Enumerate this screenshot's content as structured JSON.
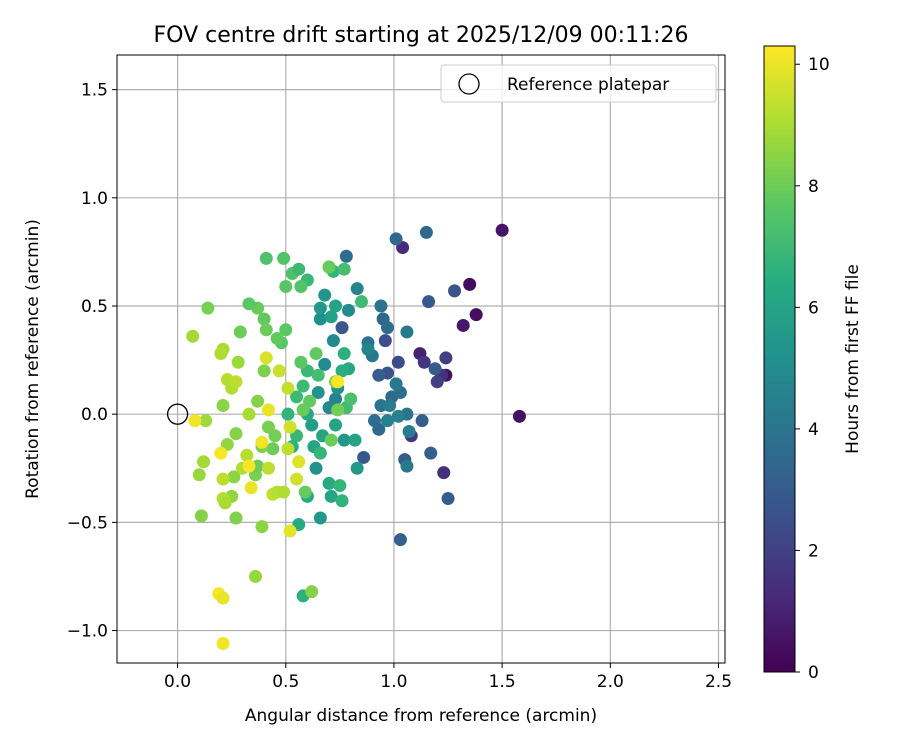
{
  "chart_data": {
    "type": "scatter",
    "title": "FOV centre drift starting at 2025/12/09 00:11:26",
    "xlabel": "Angular distance from reference (arcmin)",
    "ylabel": "Rotation from reference (arcmin)",
    "xlim": [
      -0.28,
      2.53
    ],
    "ylim": [
      -1.15,
      1.66
    ],
    "xticks": [
      0.0,
      0.5,
      1.0,
      1.5,
      2.0,
      2.5
    ],
    "xtick_labels": [
      "0.0",
      "0.5",
      "1.0",
      "1.5",
      "2.0",
      "2.5"
    ],
    "yticks": [
      -1.0,
      -0.5,
      0.0,
      0.5,
      1.0,
      1.5
    ],
    "ytick_labels": [
      "−1.0",
      "−0.5",
      "0.0",
      "0.5",
      "1.0",
      "1.5"
    ],
    "grid": true,
    "legend": {
      "position": "top-right",
      "entries": [
        "Reference platepar"
      ]
    },
    "reference_point": {
      "x": 0.0,
      "y": 0.0,
      "label": "Reference platepar"
    },
    "colorbar": {
      "label": "Hours from first FF file",
      "range": [
        0,
        10.3
      ],
      "ticks": [
        0,
        2,
        4,
        6,
        8,
        10
      ],
      "tick_labels": [
        "0",
        "2",
        "4",
        "6",
        "8",
        "10"
      ],
      "colormap": "viridis"
    },
    "points": [
      {
        "x": 1.5,
        "y": 0.85,
        "h": 0.6
      },
      {
        "x": 1.35,
        "y": 0.6,
        "h": 0.3
      },
      {
        "x": 1.38,
        "y": 0.46,
        "h": 0.4
      },
      {
        "x": 1.32,
        "y": 0.41,
        "h": 0.7
      },
      {
        "x": 1.58,
        "y": -0.01,
        "h": 0.5
      },
      {
        "x": 1.24,
        "y": 0.18,
        "h": 0.5
      },
      {
        "x": 1.12,
        "y": 0.28,
        "h": 1.0
      },
      {
        "x": 1.04,
        "y": 0.77,
        "h": 1.3
      },
      {
        "x": 1.23,
        "y": -0.27,
        "h": 1.4
      },
      {
        "x": 1.14,
        "y": 0.24,
        "h": 1.6
      },
      {
        "x": 1.22,
        "y": 0.18,
        "h": 1.5
      },
      {
        "x": 1.08,
        "y": -0.1,
        "h": 1.7
      },
      {
        "x": 1.24,
        "y": 0.26,
        "h": 1.9
      },
      {
        "x": 1.2,
        "y": 0.15,
        "h": 2.0
      },
      {
        "x": 1.28,
        "y": 0.57,
        "h": 2.6
      },
      {
        "x": 1.16,
        "y": 0.52,
        "h": 2.8
      },
      {
        "x": 1.25,
        "y": -0.39,
        "h": 3.0
      },
      {
        "x": 1.03,
        "y": -0.58,
        "h": 3.2
      },
      {
        "x": 1.19,
        "y": 0.21,
        "h": 3.0
      },
      {
        "x": 1.02,
        "y": 0.24,
        "h": 2.4
      },
      {
        "x": 0.96,
        "y": 0.34,
        "h": 2.5
      },
      {
        "x": 0.97,
        "y": 0.19,
        "h": 2.7
      },
      {
        "x": 0.93,
        "y": 0.18,
        "h": 3.1
      },
      {
        "x": 1.13,
        "y": -0.03,
        "h": 3.1
      },
      {
        "x": 1.17,
        "y": -0.18,
        "h": 3.2
      },
      {
        "x": 1.05,
        "y": -0.21,
        "h": 3.0
      },
      {
        "x": 0.86,
        "y": -0.2,
        "h": 2.8
      },
      {
        "x": 0.76,
        "y": 0.4,
        "h": 2.8
      },
      {
        "x": 1.01,
        "y": 0.81,
        "h": 3.4
      },
      {
        "x": 1.15,
        "y": 0.84,
        "h": 3.6
      },
      {
        "x": 0.78,
        "y": 0.73,
        "h": 3.7
      },
      {
        "x": 0.95,
        "y": 0.44,
        "h": 3.5
      },
      {
        "x": 0.94,
        "y": 0.5,
        "h": 3.9
      },
      {
        "x": 0.97,
        "y": 0.4,
        "h": 3.6
      },
      {
        "x": 0.88,
        "y": 0.33,
        "h": 4.0
      },
      {
        "x": 0.9,
        "y": 0.27,
        "h": 4.1
      },
      {
        "x": 0.99,
        "y": 0.08,
        "h": 3.6
      },
      {
        "x": 1.03,
        "y": 0.1,
        "h": 3.8
      },
      {
        "x": 1.01,
        "y": 0.14,
        "h": 4.2
      },
      {
        "x": 0.94,
        "y": 0.04,
        "h": 4.0
      },
      {
        "x": 0.98,
        "y": 0.04,
        "h": 4.3
      },
      {
        "x": 1.06,
        "y": 0.0,
        "h": 4.0
      },
      {
        "x": 0.91,
        "y": -0.03,
        "h": 3.7
      },
      {
        "x": 0.93,
        "y": -0.07,
        "h": 3.6
      },
      {
        "x": 1.02,
        "y": -0.01,
        "h": 4.5
      },
      {
        "x": 1.07,
        "y": -0.08,
        "h": 4.3
      },
      {
        "x": 1.06,
        "y": -0.24,
        "h": 4.2
      },
      {
        "x": 0.97,
        "y": -0.03,
        "h": 4.6
      },
      {
        "x": 0.88,
        "y": 0.3,
        "h": 4.6
      },
      {
        "x": 1.06,
        "y": 0.38,
        "h": 4.2
      },
      {
        "x": 0.83,
        "y": 0.58,
        "h": 4.7
      },
      {
        "x": 0.79,
        "y": 0.48,
        "h": 5.0
      },
      {
        "x": 0.73,
        "y": 0.07,
        "h": 4.6
      },
      {
        "x": 0.7,
        "y": 0.03,
        "h": 4.8
      },
      {
        "x": 0.68,
        "y": 0.23,
        "h": 4.9
      },
      {
        "x": 0.72,
        "y": 0.34,
        "h": 4.9
      },
      {
        "x": 0.66,
        "y": 0.44,
        "h": 5.1
      },
      {
        "x": 0.74,
        "y": 0.12,
        "h": 5.2
      },
      {
        "x": 0.65,
        "y": 0.1,
        "h": 5.3
      },
      {
        "x": 0.64,
        "y": -0.25,
        "h": 5.3
      },
      {
        "x": 0.66,
        "y": -0.48,
        "h": 5.5
      },
      {
        "x": 0.83,
        "y": -0.25,
        "h": 5.6
      },
      {
        "x": 0.77,
        "y": -0.12,
        "h": 5.5
      },
      {
        "x": 0.62,
        "y": -0.05,
        "h": 5.8
      },
      {
        "x": 0.66,
        "y": 0.49,
        "h": 5.6
      },
      {
        "x": 0.68,
        "y": 0.55,
        "h": 5.4
      },
      {
        "x": 0.71,
        "y": 0.45,
        "h": 5.9
      },
      {
        "x": 0.73,
        "y": 0.5,
        "h": 6.0
      },
      {
        "x": 0.67,
        "y": -0.1,
        "h": 6.0
      },
      {
        "x": 0.63,
        "y": -0.15,
        "h": 6.1
      },
      {
        "x": 0.82,
        "y": -0.12,
        "h": 6.0
      },
      {
        "x": 0.73,
        "y": -0.05,
        "h": 6.1
      },
      {
        "x": 0.79,
        "y": 0.21,
        "h": 6.2
      },
      {
        "x": 0.6,
        "y": 0.0,
        "h": 6.2
      },
      {
        "x": 0.7,
        "y": -0.32,
        "h": 6.3
      },
      {
        "x": 0.71,
        "y": -0.38,
        "h": 6.1
      },
      {
        "x": 0.6,
        "y": -0.38,
        "h": 6.4
      },
      {
        "x": 0.56,
        "y": -0.51,
        "h": 6.4
      },
      {
        "x": 0.58,
        "y": -0.84,
        "h": 6.6
      },
      {
        "x": 0.76,
        "y": -0.4,
        "h": 6.7
      },
      {
        "x": 0.75,
        "y": -0.33,
        "h": 6.8
      },
      {
        "x": 0.66,
        "y": -0.18,
        "h": 6.8
      },
      {
        "x": 0.53,
        "y": -0.15,
        "h": 6.6
      },
      {
        "x": 0.55,
        "y": -0.1,
        "h": 6.9
      },
      {
        "x": 0.51,
        "y": 0.0,
        "h": 6.7
      },
      {
        "x": 0.55,
        "y": 0.08,
        "h": 7.0
      },
      {
        "x": 0.58,
        "y": 0.13,
        "h": 7.0
      },
      {
        "x": 0.6,
        "y": 0.2,
        "h": 6.9
      },
      {
        "x": 0.65,
        "y": 0.18,
        "h": 7.2
      },
      {
        "x": 0.76,
        "y": 0.2,
        "h": 6.5
      },
      {
        "x": 0.78,
        "y": 0.03,
        "h": 7.1
      },
      {
        "x": 0.8,
        "y": 0.07,
        "h": 7.3
      },
      {
        "x": 0.77,
        "y": 0.28,
        "h": 6.6
      },
      {
        "x": 0.85,
        "y": 0.52,
        "h": 7.1
      },
      {
        "x": 0.72,
        "y": 0.66,
        "h": 6.8
      },
      {
        "x": 0.77,
        "y": 0.67,
        "h": 7.2
      },
      {
        "x": 0.7,
        "y": 0.68,
        "h": 7.3
      },
      {
        "x": 0.53,
        "y": 0.65,
        "h": 7.4
      },
      {
        "x": 0.56,
        "y": 0.67,
        "h": 7.0
      },
      {
        "x": 0.6,
        "y": 0.62,
        "h": 6.9
      },
      {
        "x": 0.57,
        "y": 0.59,
        "h": 7.5
      },
      {
        "x": 0.5,
        "y": 0.59,
        "h": 7.6
      },
      {
        "x": 0.49,
        "y": 0.72,
        "h": 7.5
      },
      {
        "x": 0.41,
        "y": 0.72,
        "h": 7.4
      },
      {
        "x": 0.5,
        "y": 0.39,
        "h": 7.7
      },
      {
        "x": 0.48,
        "y": 0.33,
        "h": 7.6
      },
      {
        "x": 0.46,
        "y": 0.35,
        "h": 7.8
      },
      {
        "x": 0.4,
        "y": 0.44,
        "h": 7.8
      },
      {
        "x": 0.37,
        "y": 0.49,
        "h": 7.9
      },
      {
        "x": 0.33,
        "y": 0.51,
        "h": 7.7
      },
      {
        "x": 0.29,
        "y": 0.38,
        "h": 8.0
      },
      {
        "x": 0.41,
        "y": 0.39,
        "h": 8.0
      },
      {
        "x": 0.61,
        "y": 0.06,
        "h": 7.8
      },
      {
        "x": 0.58,
        "y": 0.02,
        "h": 7.9
      },
      {
        "x": 0.57,
        "y": 0.24,
        "h": 7.7
      },
      {
        "x": 0.64,
        "y": 0.28,
        "h": 7.8
      },
      {
        "x": 0.7,
        "y": 0.68,
        "h": 7.9
      },
      {
        "x": 0.73,
        "y": 0.15,
        "h": 8.2
      },
      {
        "x": 0.74,
        "y": 0.02,
        "h": 8.1
      },
      {
        "x": 0.71,
        "y": -0.12,
        "h": 8.0
      },
      {
        "x": 0.59,
        "y": -0.36,
        "h": 7.9
      },
      {
        "x": 0.62,
        "y": -0.82,
        "h": 8.4
      },
      {
        "x": 0.45,
        "y": -0.1,
        "h": 8.1
      },
      {
        "x": 0.44,
        "y": -0.16,
        "h": 8.0
      },
      {
        "x": 0.42,
        "y": -0.06,
        "h": 8.2
      },
      {
        "x": 0.4,
        "y": 0.2,
        "h": 8.3
      },
      {
        "x": 0.37,
        "y": 0.06,
        "h": 8.4
      },
      {
        "x": 0.39,
        "y": -0.15,
        "h": 8.3
      },
      {
        "x": 0.36,
        "y": -0.28,
        "h": 8.2
      },
      {
        "x": 0.37,
        "y": -0.24,
        "h": 8.0
      },
      {
        "x": 0.39,
        "y": -0.52,
        "h": 8.5
      },
      {
        "x": 0.36,
        "y": -0.75,
        "h": 8.7
      },
      {
        "x": 0.27,
        "y": -0.48,
        "h": 8.3
      },
      {
        "x": 0.25,
        "y": -0.38,
        "h": 8.6
      },
      {
        "x": 0.26,
        "y": -0.29,
        "h": 8.5
      },
      {
        "x": 0.27,
        "y": -0.09,
        "h": 8.4
      },
      {
        "x": 0.21,
        "y": 0.04,
        "h": 8.5
      },
      {
        "x": 0.23,
        "y": -0.14,
        "h": 8.6
      },
      {
        "x": 0.13,
        "y": -0.03,
        "h": 8.8
      },
      {
        "x": 0.1,
        "y": -0.28,
        "h": 8.7
      },
      {
        "x": 0.11,
        "y": -0.47,
        "h": 8.4
      },
      {
        "x": 0.12,
        "y": -0.22,
        "h": 8.9
      },
      {
        "x": 0.14,
        "y": 0.49,
        "h": 8.2
      },
      {
        "x": 0.07,
        "y": 0.36,
        "h": 8.9
      },
      {
        "x": 0.28,
        "y": 0.24,
        "h": 8.8
      },
      {
        "x": 0.21,
        "y": 0.3,
        "h": 9.0
      },
      {
        "x": 0.2,
        "y": 0.28,
        "h": 9.1
      },
      {
        "x": 0.23,
        "y": 0.16,
        "h": 9.2
      },
      {
        "x": 0.25,
        "y": 0.12,
        "h": 9.1
      },
      {
        "x": 0.27,
        "y": 0.15,
        "h": 9.3
      },
      {
        "x": 0.33,
        "y": 0.0,
        "h": 9.0
      },
      {
        "x": 0.32,
        "y": -0.19,
        "h": 9.2
      },
      {
        "x": 0.3,
        "y": -0.25,
        "h": 9.1
      },
      {
        "x": 0.21,
        "y": -0.3,
        "h": 9.3
      },
      {
        "x": 0.21,
        "y": -0.39,
        "h": 9.2
      },
      {
        "x": 0.22,
        "y": -0.41,
        "h": 9.0
      },
      {
        "x": 0.42,
        "y": -0.25,
        "h": 9.3
      },
      {
        "x": 0.44,
        "y": -0.37,
        "h": 9.4
      },
      {
        "x": 0.46,
        "y": -0.36,
        "h": 9.2
      },
      {
        "x": 0.49,
        "y": -0.36,
        "h": 9.1
      },
      {
        "x": 0.51,
        "y": -0.16,
        "h": 9.3
      },
      {
        "x": 0.52,
        "y": -0.06,
        "h": 9.6
      },
      {
        "x": 0.51,
        "y": 0.12,
        "h": 9.4
      },
      {
        "x": 0.47,
        "y": 0.2,
        "h": 9.5
      },
      {
        "x": 0.41,
        "y": 0.26,
        "h": 9.7
      },
      {
        "x": 0.55,
        "y": -0.3,
        "h": 9.6
      },
      {
        "x": 0.56,
        "y": -0.22,
        "h": 9.8
      },
      {
        "x": 0.52,
        "y": -0.54,
        "h": 9.9
      },
      {
        "x": 0.42,
        "y": 0.02,
        "h": 10.0
      },
      {
        "x": 0.39,
        "y": -0.13,
        "h": 10.1
      },
      {
        "x": 0.34,
        "y": -0.34,
        "h": 10.0
      },
      {
        "x": 0.33,
        "y": -0.24,
        "h": 10.2
      },
      {
        "x": 0.2,
        "y": -0.18,
        "h": 10.2
      },
      {
        "x": 0.08,
        "y": -0.03,
        "h": 10.1
      },
      {
        "x": 0.19,
        "y": -0.83,
        "h": 10.2
      },
      {
        "x": 0.21,
        "y": -0.85,
        "h": 10.0
      },
      {
        "x": 0.21,
        "y": -1.06,
        "h": 10.1
      },
      {
        "x": 0.74,
        "y": 0.15,
        "h": 10.3
      }
    ]
  }
}
